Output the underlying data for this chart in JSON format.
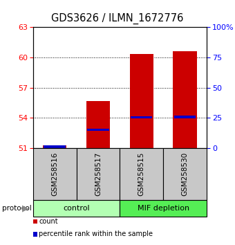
{
  "title": "GDS3626 / ILMN_1672776",
  "samples": [
    "GSM258516",
    "GSM258517",
    "GSM258515",
    "GSM258530"
  ],
  "count_values": [
    51.3,
    55.7,
    60.3,
    60.6
  ],
  "percentile_values": [
    51.15,
    52.8,
    54.05,
    54.1
  ],
  "ylim": [
    51,
    63
  ],
  "yticks_left": [
    51,
    54,
    57,
    60,
    63
  ],
  "yticks_right": [
    0,
    25,
    50,
    75,
    100
  ],
  "bar_color": "#cc0000",
  "percentile_color": "#0000cc",
  "background_color": "#ffffff",
  "sample_bg_color": "#c8c8c8",
  "control_color": "#b3ffb3",
  "mif_color": "#55ee55",
  "bar_width": 0.55
}
